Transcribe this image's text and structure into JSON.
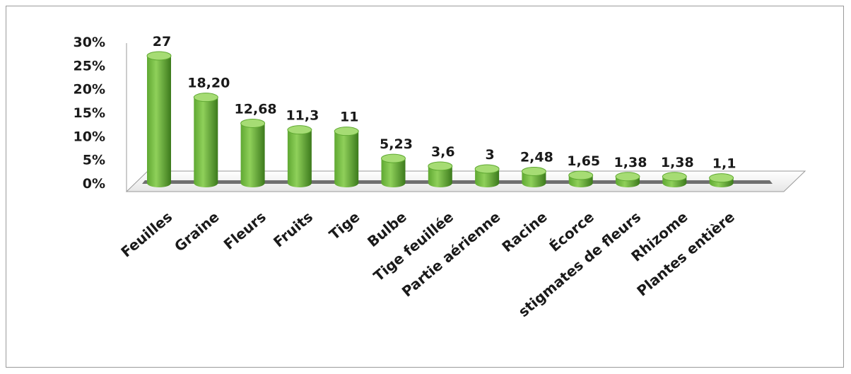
{
  "chart_data": {
    "type": "bar",
    "style": "3d-cylinder",
    "categories": [
      "Feuilles",
      "Graine",
      "Fleurs",
      "Fruits",
      "Tige",
      "Bulbe",
      "Tige feuillée",
      "Partie aérienne",
      "Racine",
      "Écorce",
      "stigmates de fleurs",
      "Rhizome",
      "Plantes entière"
    ],
    "values": [
      27,
      18.2,
      12.68,
      11.3,
      11,
      5.23,
      3.6,
      3,
      2.48,
      1.65,
      1.38,
      1.38,
      1.1
    ],
    "data_labels": [
      "27",
      "18,20",
      "12,68",
      "11,3",
      "11",
      "5,23",
      "3,6",
      "3",
      "2,48",
      "1,65",
      "1,38",
      "1,38",
      "1,1"
    ],
    "y_tick_labels": [
      "0%",
      "5%",
      "10%",
      "15%",
      "20%",
      "25%",
      "30%"
    ],
    "ylim": [
      0,
      30
    ],
    "grid": false,
    "legend": "none",
    "colors": {
      "bar_light": "#8fd05a",
      "bar_mid": "#5fa832",
      "bar_dark": "#3c7a1c",
      "bar_top": "#a6dc74",
      "floor": "#ffffff",
      "floor_edge": "#9a9a9a",
      "floor_shadow": "#6f6f6f"
    }
  }
}
